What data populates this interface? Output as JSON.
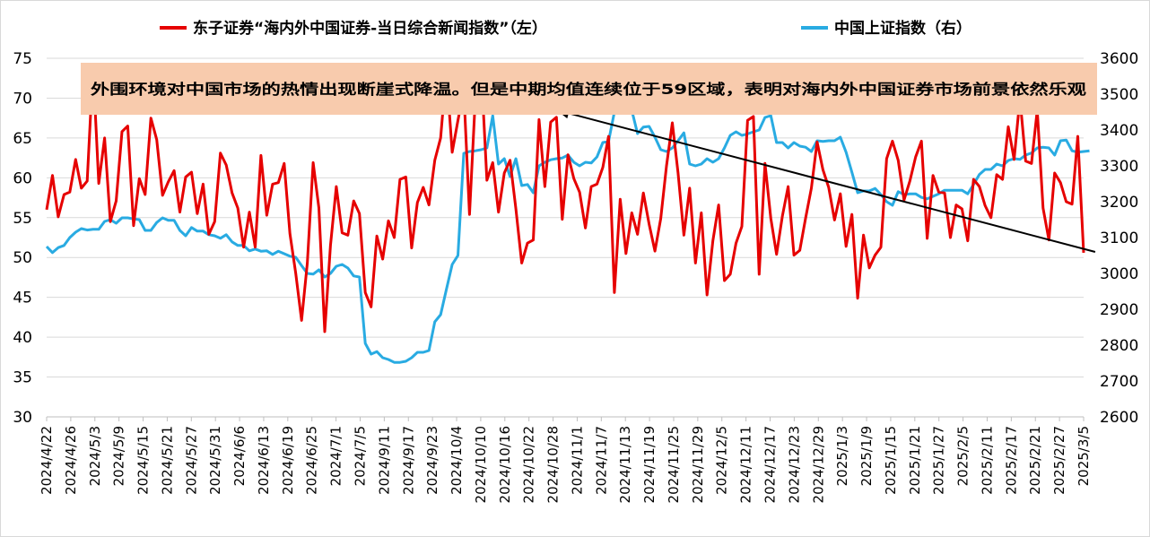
{
  "chart_data": {
    "type": "line",
    "legend_placement": "top",
    "grid": "horizontal",
    "series": [
      {
        "name": "东子证券“海内外中国证券-当日综合新闻指数”（左）",
        "axis": "left",
        "color": "#E60000",
        "values": [
          56.0,
          60.3,
          55.1,
          57.9,
          58.2,
          62.3,
          58.7,
          59.6,
          74.0,
          59.3,
          65.0,
          54.5,
          57.1,
          65.8,
          66.5,
          54.0,
          59.9,
          57.9,
          67.5,
          64.8,
          57.8,
          59.5,
          60.9,
          55.7,
          60.1,
          60.7,
          55.5,
          59.2,
          52.9,
          54.5,
          63.1,
          61.6,
          58.1,
          56.2,
          51.3,
          55.7,
          51.3,
          62.8,
          55.3,
          59.2,
          59.4,
          61.8,
          53.0,
          48.0,
          42.1,
          49.3,
          61.9,
          56.2,
          40.7,
          51.5,
          58.9,
          53.1,
          52.8,
          57.1,
          55.5,
          45.6,
          43.8,
          52.7,
          49.8,
          54.6,
          52.5,
          59.8,
          60.1,
          51.2,
          56.9,
          58.8,
          56.6,
          62.2,
          65.0,
          73.6,
          63.2,
          67.2,
          71.0,
          55.4,
          70.0,
          73.8,
          59.7,
          61.9,
          55.7,
          60.6,
          62.2,
          56.1,
          49.3,
          51.8,
          52.2,
          67.3,
          58.9,
          67.0,
          67.6,
          54.8,
          62.9,
          59.9,
          58.2,
          53.7,
          58.9,
          59.2,
          61.3,
          65.2,
          45.6,
          57.3,
          50.5,
          55.6,
          52.9,
          58.1,
          54.2,
          50.8,
          54.9,
          61.5,
          66.9,
          60.6,
          52.8,
          58.7,
          49.3,
          55.6,
          45.3,
          52.1,
          56.6,
          47.1,
          47.9,
          51.8,
          53.9,
          67.2,
          67.7,
          47.9,
          61.8,
          54.9,
          50.4,
          55.2,
          58.9,
          50.3,
          50.9,
          54.9,
          58.7,
          64.5,
          61.0,
          58.8,
          54.7,
          58.0,
          51.4,
          55.4,
          44.9,
          52.8,
          48.7,
          50.3,
          51.3,
          62.4,
          64.6,
          62.2,
          57.2,
          59.6,
          62.6,
          64.6,
          52.4,
          60.3,
          58.2,
          58.1,
          52.5,
          56.6,
          56.1,
          52.1,
          59.8,
          58.9,
          56.5,
          55.0,
          60.4,
          59.8,
          66.4,
          62.3,
          70.0,
          62.1,
          61.8,
          68.5,
          56.2,
          52.2,
          60.6,
          59.4,
          57.0,
          56.7,
          65.2,
          50.6
        ]
      },
      {
        "name": "中国上证指数（右）",
        "axis": "right",
        "color": "#29ABE2",
        "values": [
          3075,
          3058,
          3072,
          3078,
          3100,
          3115,
          3125,
          3121,
          3123,
          3123,
          3145,
          3150,
          3140,
          3155,
          3155,
          3152,
          3150,
          3120,
          3120,
          3142,
          3155,
          3148,
          3148,
          3120,
          3105,
          3128,
          3118,
          3118,
          3108,
          3105,
          3098,
          3108,
          3088,
          3078,
          3078,
          3063,
          3068,
          3062,
          3063,
          3053,
          3062,
          3055,
          3048,
          3045,
          3022,
          3000,
          2998,
          3010,
          2990,
          3000,
          3020,
          3025,
          3015,
          2993,
          2990,
          2805,
          2775,
          2782,
          2765,
          2760,
          2752,
          2752,
          2755,
          2765,
          2780,
          2780,
          2785,
          2865,
          2885,
          2955,
          3025,
          3050,
          3335,
          3340,
          3342,
          3345,
          3350,
          3440,
          3305,
          3320,
          3270,
          3320,
          3245,
          3248,
          3225,
          3300,
          3310,
          3317,
          3320,
          3322,
          3330,
          3310,
          3300,
          3310,
          3308,
          3325,
          3365,
          3368,
          3450,
          3465,
          3500,
          3455,
          3390,
          3408,
          3410,
          3380,
          3345,
          3340,
          3350,
          3370,
          3392,
          3305,
          3300,
          3305,
          3320,
          3310,
          3320,
          3350,
          3385,
          3395,
          3385,
          3389,
          3395,
          3400,
          3435,
          3440,
          3365,
          3365,
          3350,
          3365,
          3355,
          3352,
          3340,
          3370,
          3368,
          3370,
          3370,
          3380,
          3338,
          3282,
          3225,
          3230,
          3230,
          3237,
          3220,
          3200,
          3190,
          3228,
          3220,
          3222,
          3222,
          3212,
          3208,
          3215,
          3222,
          3232,
          3232,
          3232,
          3232,
          3222,
          3248,
          3276,
          3290,
          3290,
          3305,
          3300,
          3315,
          3320,
          3318,
          3330,
          3336,
          3350,
          3352,
          3350,
          3330,
          3370,
          3372,
          3342,
          3338,
          3340,
          3342
        ]
      }
    ],
    "x_tick_labels": [
      "2024/4/22",
      "2024/4/26",
      "2024/5/3",
      "2024/5/9",
      "2024/5/15",
      "2024/5/21",
      "2024/5/27",
      "2024/5/31",
      "2024/6/6",
      "2024/6/13",
      "2024/6/19",
      "2024/6/25",
      "2024/7/1",
      "2024/7/5",
      "2024/9/11",
      "2024/9/17",
      "2024/9/23",
      "2024/10/4",
      "2024/10/10",
      "2024/10/16",
      "2024/10/22",
      "2024/10/28",
      "2024/11/1",
      "2024/11/7",
      "2024/11/13",
      "2024/11/19",
      "2024/11/25",
      "2024/11/29",
      "2024/12/5",
      "2024/12/11",
      "2024/12/17",
      "2024/12/23",
      "2024/12/29",
      "2025/1/3",
      "2025/1/9",
      "2025/1/15",
      "2025/1/21",
      "2025/1/27",
      "2025/2/5",
      "2025/2/11",
      "2025/2/17",
      "2025/2/21",
      "2025/2/27",
      "2025/3/5"
    ],
    "y_left": {
      "min": 30,
      "max": 75,
      "step": 5,
      "ticks": [
        "30",
        "35",
        "40",
        "45",
        "50",
        "55",
        "60",
        "65",
        "70",
        "75"
      ]
    },
    "y_right": {
      "min": 2600,
      "max": 3600,
      "step": 100,
      "ticks": [
        "2600",
        "2700",
        "2800",
        "2900",
        "3000",
        "3100",
        "3200",
        "3300",
        "3400",
        "3500",
        "3600"
      ]
    },
    "annotation": {
      "text": "外围环境对中国市场的热情出现断崖式降温。但是中期均值连续位于59区域，表明对海内外中国证券市场前景依然乐观",
      "background": "#F8CBAD"
    },
    "trend_arrow": {
      "color": "#000000",
      "from_index": 181,
      "from_value": 50.7,
      "to_index": 88,
      "to_value": 68.5
    }
  }
}
